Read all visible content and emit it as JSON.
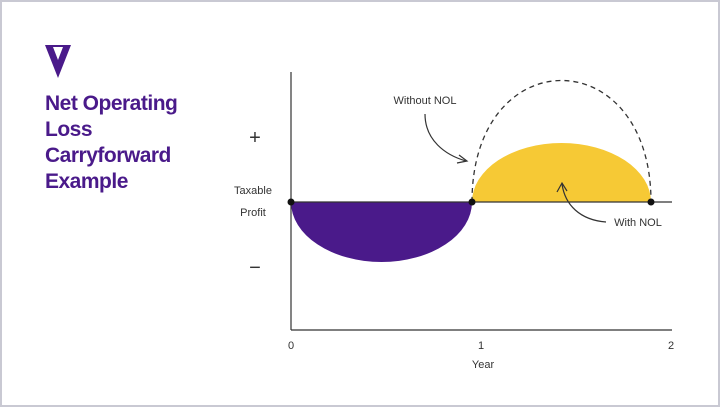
{
  "title": {
    "lines": [
      "Net Operating",
      "Loss",
      "Carryforward",
      "Example"
    ]
  },
  "y_axis": {
    "plus": "+",
    "minus": "−",
    "label_lines": [
      "Taxable",
      "Profit"
    ]
  },
  "x_axis": {
    "ticks": [
      "0",
      "1",
      "2"
    ],
    "label": "Year"
  },
  "annotations": {
    "without": "Without NOL",
    "with": "With NOL"
  }
}
